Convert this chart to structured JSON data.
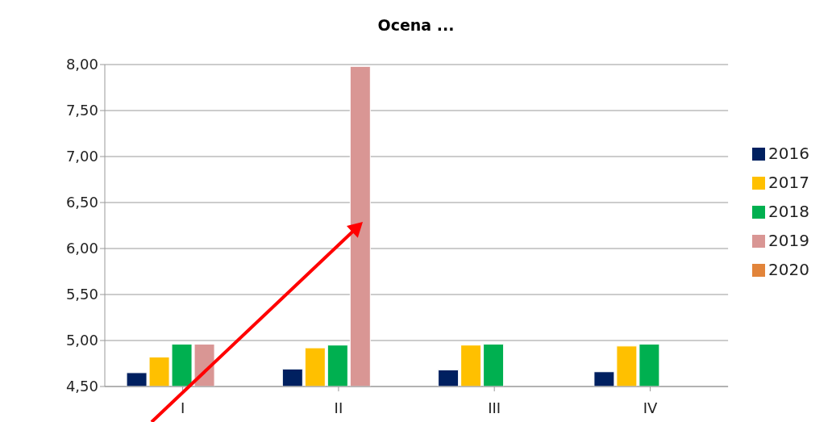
{
  "chart_data": {
    "type": "bar",
    "title": "Ocena ...",
    "categories": [
      "I",
      "II",
      "III",
      "IV"
    ],
    "series": [
      {
        "name": "2016",
        "color": "#002060",
        "values": [
          4.65,
          4.69,
          4.68,
          4.66
        ]
      },
      {
        "name": "2017",
        "color": "#ffc000",
        "values": [
          4.82,
          4.92,
          4.95,
          4.94
        ]
      },
      {
        "name": "2018",
        "color": "#00b050",
        "values": [
          4.96,
          4.95,
          4.96,
          4.96
        ]
      },
      {
        "name": "2019",
        "color": "#d99694",
        "values": [
          4.96,
          7.98,
          null,
          null
        ]
      },
      {
        "name": "2020",
        "color": "#e2843a",
        "values": [
          null,
          null,
          null,
          null
        ]
      }
    ],
    "ylim": [
      4.5,
      8
    ],
    "yticks": [
      {
        "value": 4.5,
        "label": "4,50"
      },
      {
        "value": 5,
        "label": "5,00"
      },
      {
        "value": 5.5,
        "label": "5,50"
      },
      {
        "value": 6,
        "label": "6,00"
      },
      {
        "value": 6.5,
        "label": "6,50"
      },
      {
        "value": 7,
        "label": "7,00"
      },
      {
        "value": 7.5,
        "label": "7,50"
      },
      {
        "value": 8,
        "label": "8,00"
      }
    ],
    "grid": "y",
    "legend": "right"
  }
}
